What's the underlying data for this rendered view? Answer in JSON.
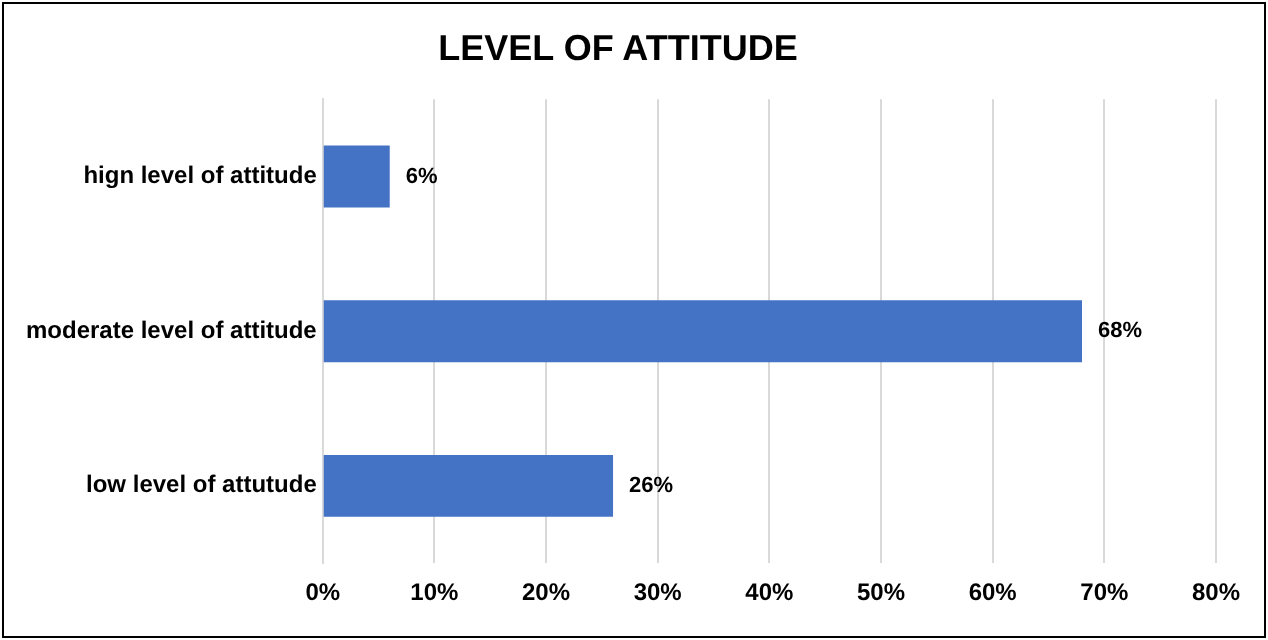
{
  "chart_data": {
    "type": "bar",
    "orientation": "horizontal",
    "title": "LEVEL OF ATTITUDE",
    "categories": [
      "hign level of attitude",
      "moderate level of attitude",
      "low level of attutude"
    ],
    "values": [
      6,
      68,
      26
    ],
    "color": "#4472c4",
    "value_labels": [
      "6%",
      "68%",
      "26%"
    ],
    "xlim": [
      0,
      80
    ],
    "xticks": [
      {
        "value": 0,
        "label": "0%"
      },
      {
        "value": 10,
        "label": "10%"
      },
      {
        "value": 20,
        "label": "20%"
      },
      {
        "value": 30,
        "label": "30%"
      },
      {
        "value": 40,
        "label": "40%"
      },
      {
        "value": 50,
        "label": "50%"
      },
      {
        "value": 60,
        "label": "60%"
      },
      {
        "value": 70,
        "label": "70%"
      },
      {
        "value": 80,
        "label": "80%"
      }
    ],
    "grid": "x",
    "legend": false
  }
}
